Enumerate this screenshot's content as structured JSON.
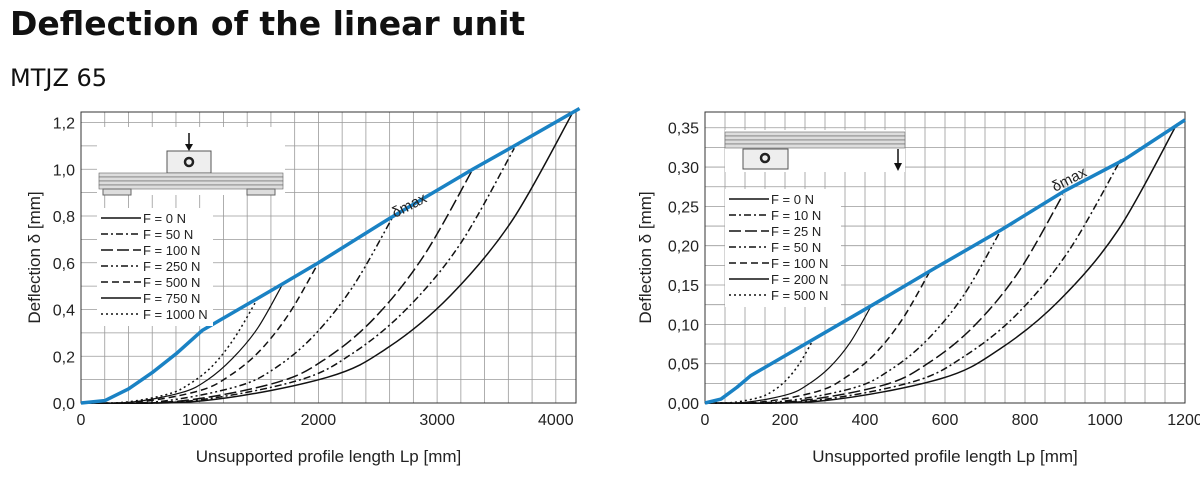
{
  "title": "Deflection of the linear unit",
  "subtitle": "MTJZ 65",
  "colors": {
    "dmax": "#1a82c4",
    "curves": "#111111",
    "grid": "#9a9a9a"
  },
  "chart_data": [
    {
      "type": "line",
      "xlabel": "Unsupported profile length Lp [mm]",
      "ylabel": "Deflection δ [mm]",
      "xlim": [
        0,
        4170
      ],
      "ylim": [
        0,
        1.245
      ],
      "grid": true,
      "legend": "top-left",
      "inset": "load-at-center-diagram",
      "xticks": [
        0,
        1000,
        2000,
        3000,
        4000
      ],
      "xtick_labels": [
        "0",
        "1000",
        "2000",
        "3000",
        "4000"
      ],
      "yticks": [
        0,
        0.2,
        0.4,
        0.6,
        0.8,
        1.0,
        1.2
      ],
      "ytick_labels": [
        "0,0",
        "0,2",
        "0,4",
        "0,6",
        "0,8",
        "1,0",
        "1,2"
      ],
      "annotation": "δmax",
      "dmax": {
        "x": [
          0,
          200,
          400,
          600,
          800,
          1020,
          1700,
          2000,
          2600,
          3300,
          3650,
          4200
        ],
        "y": [
          0,
          0.01,
          0.06,
          0.13,
          0.21,
          0.31,
          0.51,
          0.6,
          0.79,
          1.0,
          1.1,
          1.26
        ]
      },
      "series": [
        {
          "name": "F = 0 N",
          "dash": "solid",
          "x": [
            0,
            1038,
            2075,
            2594,
            3113,
            3631,
            4150
          ],
          "y": [
            0,
            0.01,
            0.11,
            0.24,
            0.46,
            0.78,
            1.25
          ]
        },
        {
          "name": "F = 50 N",
          "dash": "dash-dot",
          "x": [
            0,
            913,
            1825,
            2281,
            2738,
            3194,
            3650
          ],
          "y": [
            0,
            0.0085,
            0.096,
            0.21,
            0.4,
            0.68,
            1.09
          ]
        },
        {
          "name": "F = 100 N",
          "dash": "long-dash",
          "x": [
            0,
            825,
            1650,
            2063,
            2475,
            2888,
            3300
          ],
          "y": [
            0,
            0.008,
            0.088,
            0.19,
            0.365,
            0.63,
            1.0
          ]
        },
        {
          "name": "F = 250 N",
          "dash": "dash-dot-dot",
          "x": [
            0,
            655,
            1310,
            1638,
            1965,
            2293,
            2620
          ],
          "y": [
            0,
            0.006,
            0.07,
            0.15,
            0.29,
            0.5,
            0.79
          ]
        },
        {
          "name": "F = 500 N",
          "dash": "dash",
          "x": [
            0,
            500,
            1000,
            1250,
            1500,
            1750,
            2000
          ],
          "y": [
            0,
            0.005,
            0.053,
            0.116,
            0.22,
            0.38,
            0.6
          ]
        },
        {
          "name": "F = 750 N",
          "dash": "solid-thin",
          "x": [
            0,
            425,
            850,
            1063,
            1275,
            1488,
            1700
          ],
          "y": [
            0,
            0.004,
            0.045,
            0.098,
            0.19,
            0.32,
            0.51
          ]
        },
        {
          "name": "F = 1000 N",
          "dash": "dotted",
          "x": [
            0,
            370,
            740,
            925,
            1110,
            1295,
            1480
          ],
          "y": [
            0,
            0.0034,
            0.039,
            0.085,
            0.16,
            0.28,
            0.44
          ]
        }
      ]
    },
    {
      "type": "line",
      "xlabel": "Unsupported profile length Lp [mm]",
      "ylabel": "Deflection δ [mm]",
      "xlim": [
        0,
        1200
      ],
      "ylim": [
        0,
        0.37
      ],
      "grid": true,
      "legend": "top-left",
      "inset": "load-at-end-diagram",
      "xticks": [
        0,
        200,
        400,
        600,
        800,
        1000,
        1200
      ],
      "xtick_labels": [
        "0",
        "200",
        "400",
        "600",
        "800",
        "1000",
        "1200"
      ],
      "yticks": [
        0,
        0.05,
        0.1,
        0.15,
        0.2,
        0.25,
        0.3,
        0.35
      ],
      "ytick_labels": [
        "0,00",
        "0,05",
        "0,10",
        "0,15",
        "0,20",
        "0,25",
        "0,30",
        "0,35"
      ],
      "annotation": "δmax",
      "dmax": {
        "x": [
          0,
          40,
          80,
          115,
          420,
          570,
          740,
          900,
          1050,
          1200
        ],
        "y": [
          0,
          0.005,
          0.02,
          0.035,
          0.125,
          0.17,
          0.22,
          0.27,
          0.31,
          0.36
        ]
      },
      "series": [
        {
          "name": "F = 0 N",
          "dash": "solid",
          "x": [
            0,
            295,
            590,
            738,
            885,
            1033,
            1180
          ],
          "y": [
            0,
            0.0028,
            0.031,
            0.069,
            0.13,
            0.22,
            0.355
          ]
        },
        {
          "name": "F = 10 N",
          "dash": "dash-dot",
          "x": [
            0,
            260,
            520,
            650,
            780,
            910,
            1040
          ],
          "y": [
            0,
            0.0024,
            0.027,
            0.06,
            0.113,
            0.194,
            0.31
          ]
        },
        {
          "name": "F = 25 N",
          "dash": "long-dash",
          "x": [
            0,
            224,
            448,
            559,
            671,
            783,
            895
          ],
          "y": [
            0,
            0.0021,
            0.023,
            0.051,
            0.097,
            0.166,
            0.265
          ]
        },
        {
          "name": "F = 50 N",
          "dash": "dash-dot-dot",
          "x": [
            0,
            185,
            370,
            463,
            555,
            648,
            740
          ],
          "y": [
            0,
            0.0017,
            0.019,
            0.042,
            0.08,
            0.138,
            0.22
          ]
        },
        {
          "name": "F = 100 N",
          "dash": "dash",
          "x": [
            0,
            141,
            283,
            353,
            424,
            494,
            565
          ],
          "y": [
            0,
            0.0013,
            0.015,
            0.033,
            0.062,
            0.107,
            0.17
          ]
        },
        {
          "name": "F = 200 N",
          "dash": "solid-thin",
          "x": [
            0,
            104,
            208,
            259,
            311,
            363,
            415
          ],
          "y": [
            0,
            0.001,
            0.011,
            0.024,
            0.045,
            0.077,
            0.123
          ]
        },
        {
          "name": "F = 500 N",
          "dash": "dotted",
          "x": [
            0,
            68,
            135,
            169,
            203,
            236,
            270
          ],
          "y": [
            0,
            0.0006,
            0.007,
            0.015,
            0.029,
            0.05,
            0.08
          ]
        }
      ]
    }
  ]
}
